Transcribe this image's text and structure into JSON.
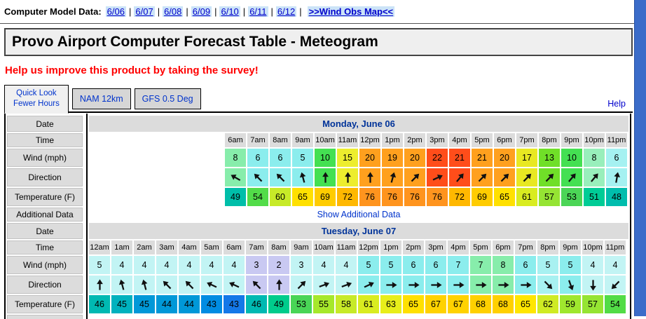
{
  "topbar": {
    "label": "Computer Model Data:",
    "links": [
      "6/06",
      "6/07",
      "6/08",
      "6/09",
      "6/10",
      "6/11",
      "6/12"
    ],
    "map_link": ">>Wind Obs Map<<"
  },
  "title": "Provo Airport Computer Forecast Table - Meteogram",
  "survey": "Help us improve this product by taking the survey!",
  "tabs": {
    "active_line1": "Quick Look",
    "active_line2": "Fewer Hours",
    "others": [
      "NAM 12km",
      "GFS 0.5 Deg"
    ],
    "help": "Help"
  },
  "colors": {
    "link_highlight": "#CBE3F7",
    "link_text": "#0000CC",
    "tab_text": "#0033CC",
    "date_header_text": "#003399",
    "survey_text": "#FF0000",
    "header_band_bg": "#DCDCDC",
    "scrollbar_blue": "#3B6CC9"
  },
  "table": {
    "row_labels": {
      "date": "Date",
      "time": "Time",
      "wind": "Wind (mph)",
      "direction": "Direction",
      "temp": "Temperature (F)",
      "additional": "Additional Data"
    },
    "additional_link": "Show Additional Data",
    "days": [
      {
        "date": "Monday, June 06",
        "align": "right",
        "show_additional_row": true,
        "times": [
          "6am",
          "7am",
          "8am",
          "9am",
          "10am",
          "11am",
          "12pm",
          "1pm",
          "2pm",
          "3pm",
          "4pm",
          "5pm",
          "6pm",
          "7pm",
          "8pm",
          "9pm",
          "10pm",
          "11pm"
        ],
        "wind": [
          8,
          6,
          6,
          5,
          10,
          15,
          20,
          19,
          20,
          22,
          21,
          21,
          20,
          17,
          13,
          10,
          8,
          6
        ],
        "wind_colors": [
          "#87EDAB",
          "#8BEDED",
          "#8BEDED",
          "#8BEDED",
          "#44E052",
          "#EDED2E",
          "#FFA01E",
          "#FFA01E",
          "#FFA01E",
          "#FF4D1A",
          "#FF4D1A",
          "#FFA01E",
          "#FFA01E",
          "#E8E822",
          "#70DF28",
          "#44E052",
          "#98EFBB",
          "#A5F1F1"
        ],
        "dir_rot": [
          -60,
          -45,
          -45,
          -15,
          0,
          0,
          0,
          15,
          45,
          65,
          40,
          45,
          45,
          45,
          45,
          40,
          40,
          10
        ],
        "temps": [
          49,
          54,
          60,
          65,
          69,
          72,
          76,
          76,
          76,
          76,
          72,
          69,
          65,
          61,
          57,
          53,
          51,
          48
        ],
        "temp_colors": [
          "#00BEA9",
          "#52DC49",
          "#C7EA28",
          "#FFE000",
          "#FFCC00",
          "#FFB800",
          "#FF941E",
          "#FF941E",
          "#FF941E",
          "#FF941E",
          "#FFB800",
          "#FFCC00",
          "#FFE000",
          "#D9EC20",
          "#95E433",
          "#4BD556",
          "#00CC96",
          "#00BDAD"
        ]
      },
      {
        "date": "Tuesday, June 07",
        "align": "left",
        "show_additional_row": false,
        "times": [
          "12am",
          "1am",
          "2am",
          "3am",
          "4am",
          "5am",
          "6am",
          "7am",
          "8am",
          "9am",
          "10am",
          "11am",
          "12pm",
          "1pm",
          "2pm",
          "3pm",
          "4pm",
          "5pm",
          "6pm",
          "7pm",
          "8pm",
          "9pm",
          "10pm",
          "11pm"
        ],
        "wind": [
          5,
          4,
          4,
          4,
          4,
          4,
          4,
          3,
          2,
          3,
          4,
          4,
          5,
          5,
          6,
          6,
          7,
          7,
          8,
          6,
          5,
          5,
          4,
          4
        ],
        "wind_colors": [
          "#C2F4F4",
          "#C2F4F4",
          "#C2F4F4",
          "#C2F4F4",
          "#C2F4F4",
          "#C2F4F4",
          "#C2F4F4",
          "#C9C9F2",
          "#C9C9F2",
          "#C2F4F4",
          "#C2F4F4",
          "#C2F4F4",
          "#8BEDED",
          "#8BEDED",
          "#8BEDED",
          "#8BEDED",
          "#8BEDED",
          "#87EDAB",
          "#87EDAB",
          "#8BEDED",
          "#A8F1F1",
          "#8BEDED",
          "#C2F4F4",
          "#C2F4F4"
        ],
        "dir_rot": [
          0,
          -15,
          -15,
          -45,
          -45,
          -65,
          -65,
          -45,
          0,
          45,
          70,
          70,
          65,
          90,
          90,
          90,
          90,
          90,
          90,
          90,
          135,
          160,
          180,
          225
        ],
        "temps": [
          46,
          45,
          45,
          44,
          44,
          43,
          43,
          46,
          49,
          53,
          55,
          58,
          61,
          63,
          65,
          67,
          67,
          68,
          68,
          65,
          62,
          59,
          57,
          54
        ],
        "temp_colors": [
          "#00B9B2",
          "#00B2BE",
          "#0098D8",
          "#0098D8",
          "#0098D8",
          "#008CE2",
          "#1478E8",
          "#00B9B2",
          "#00CC8C",
          "#49D556",
          "#A6E82B",
          "#C7EA28",
          "#D9EC20",
          "#E8EE1A",
          "#FFE000",
          "#FFD200",
          "#FFD200",
          "#FFD000",
          "#FFD000",
          "#FFE600",
          "#CFEB24",
          "#9FE72E",
          "#95E433",
          "#52DC46"
        ]
      }
    ]
  }
}
